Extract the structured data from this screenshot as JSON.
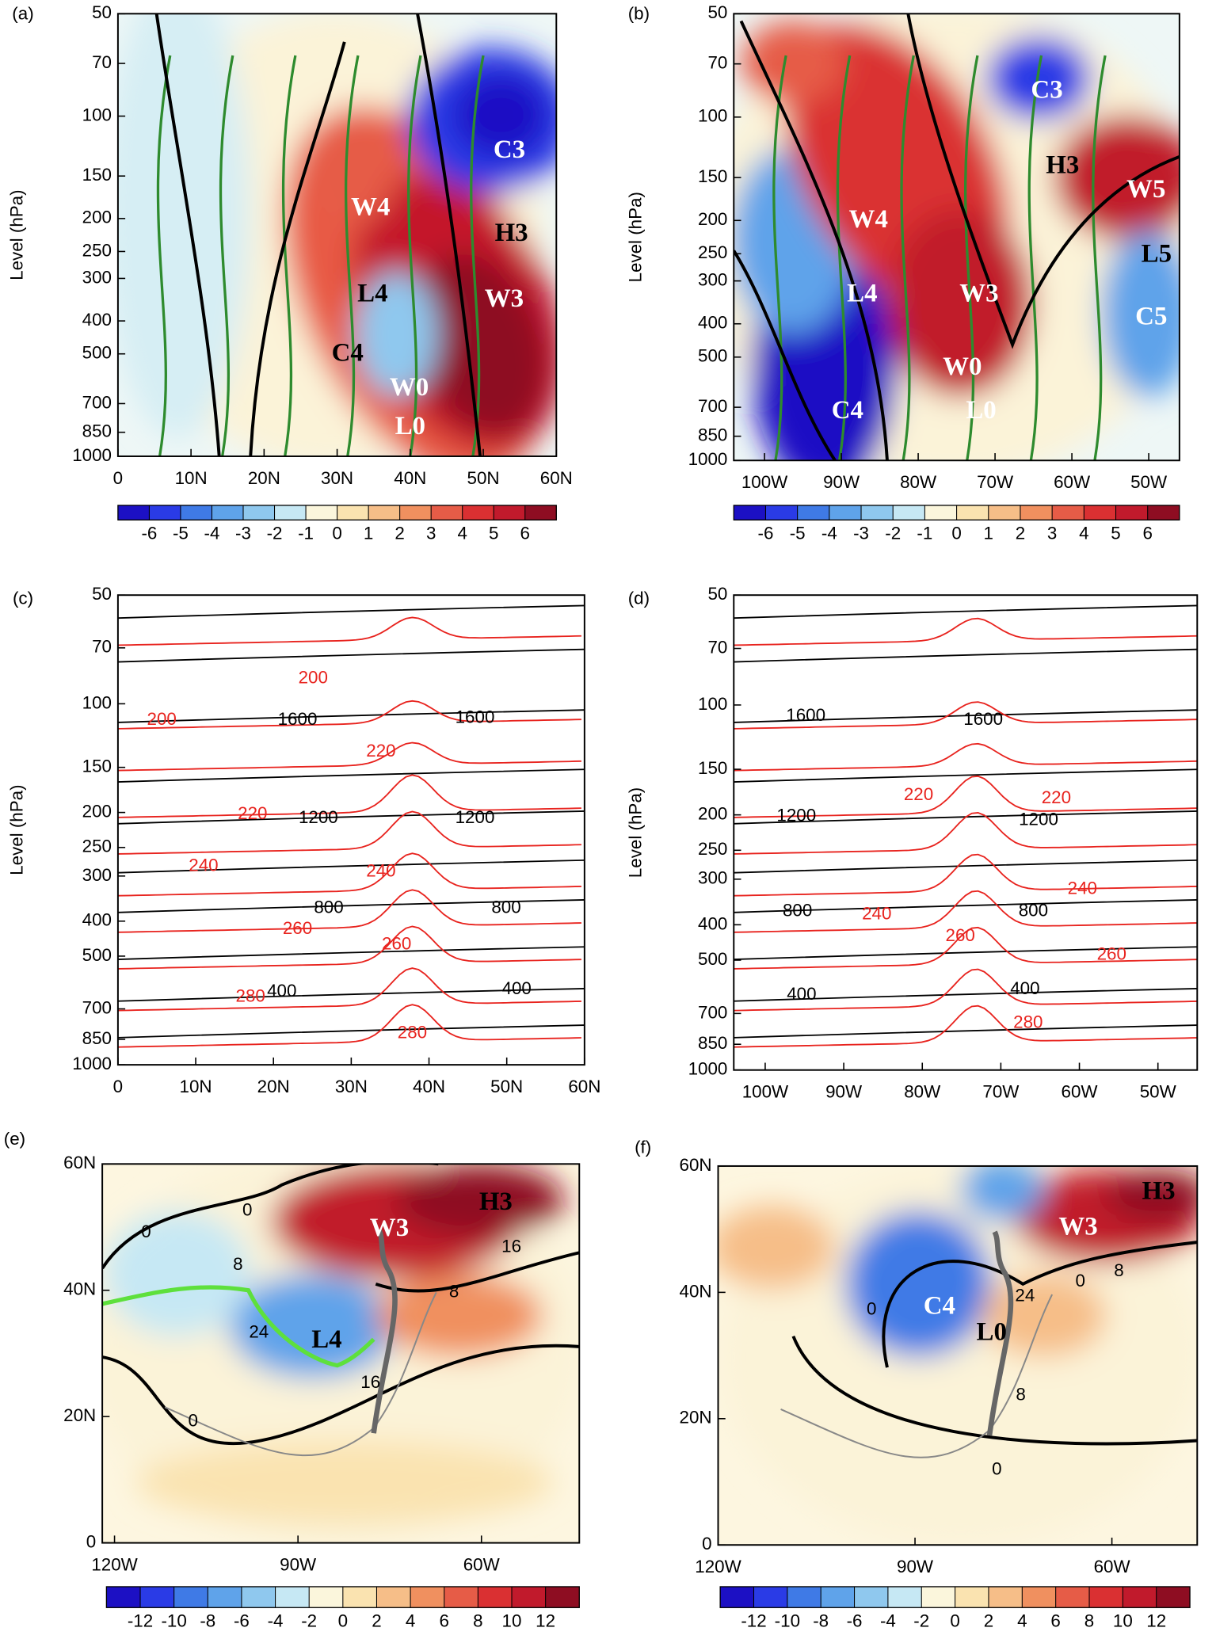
{
  "chart_data": [
    {
      "type": "contour",
      "title": "(a)",
      "ylabel": "Level (hPa)",
      "ylog": true,
      "xlim": [
        0,
        60
      ],
      "xticks": [
        0,
        {
          "value": 10,
          "label": "10N"
        },
        {
          "value": 20,
          "label": "20N"
        },
        {
          "value": 30,
          "label": "30N"
        },
        {
          "value": 40,
          "label": "40N"
        },
        {
          "value": 50,
          "label": "50N"
        },
        {
          "value": 60,
          "label": "60N"
        }
      ],
      "ylim": [
        1000,
        50
      ],
      "yticks": [
        50,
        70,
        100,
        150,
        200,
        250,
        300,
        400,
        500,
        700,
        850,
        1000
      ],
      "colorbar": {
        "ticks": [
          -6,
          -5,
          -4,
          -3,
          -2,
          -1,
          0,
          1,
          2,
          3,
          4,
          5,
          6
        ],
        "colors": [
          "#1c10c4",
          "#2a3be6",
          "#3f7ae6",
          "#5fa3ea",
          "#8fc8ee",
          "#c6e8f4",
          "#fbf6dc",
          "#fae3b0",
          "#f6be88",
          "#f0905f",
          "#e65c47",
          "#da3032",
          "#c11a2c",
          "#8e0d22"
        ]
      },
      "annotations": [
        {
          "text": "C3",
          "color": "#ffffff"
        },
        {
          "text": "W4",
          "color": "#ffffff"
        },
        {
          "text": "H3",
          "color": "#000000"
        },
        {
          "text": "W3",
          "color": "#ffffff"
        },
        {
          "text": "L4",
          "color": "#000000"
        },
        {
          "text": "C4",
          "color": "#000000"
        },
        {
          "text": "W0",
          "color": "#ffffff"
        },
        {
          "text": "L0",
          "color": "#ffffff"
        }
      ]
    },
    {
      "type": "contour",
      "title": "(b)",
      "ylabel": "Level (hPa)",
      "ylog": true,
      "xlim": [
        -104,
        -46
      ],
      "xticks": [
        {
          "value": -100,
          "label": "100W"
        },
        {
          "value": -90,
          "label": "90W"
        },
        {
          "value": -80,
          "label": "80W"
        },
        {
          "value": -70,
          "label": "70W"
        },
        {
          "value": -60,
          "label": "60W"
        },
        {
          "value": -50,
          "label": "50W"
        }
      ],
      "ylim": [
        1000,
        50
      ],
      "yticks": [
        50,
        70,
        100,
        150,
        200,
        250,
        300,
        400,
        500,
        700,
        850,
        1000
      ],
      "colorbar": {
        "ticks": [
          -6,
          -5,
          -4,
          -3,
          -2,
          -1,
          0,
          1,
          2,
          3,
          4,
          5,
          6
        ],
        "colors": [
          "#1c10c4",
          "#2a3be6",
          "#3f7ae6",
          "#5fa3ea",
          "#8fc8ee",
          "#c6e8f4",
          "#fbf6dc",
          "#fae3b0",
          "#f6be88",
          "#f0905f",
          "#e65c47",
          "#da3032",
          "#c11a2c",
          "#8e0d22"
        ]
      },
      "annotations": [
        {
          "text": "C3",
          "color": "#ffffff"
        },
        {
          "text": "H3",
          "color": "#000000"
        },
        {
          "text": "W5",
          "color": "#ffffff"
        },
        {
          "text": "W4",
          "color": "#ffffff"
        },
        {
          "text": "L5",
          "color": "#000000"
        },
        {
          "text": "L4",
          "color": "#ffffff"
        },
        {
          "text": "W3",
          "color": "#ffffff"
        },
        {
          "text": "C5",
          "color": "#ffffff"
        },
        {
          "text": "W0",
          "color": "#ffffff"
        },
        {
          "text": "C4",
          "color": "#ffffff"
        },
        {
          "text": "L0",
          "color": "#ffffff"
        }
      ]
    },
    {
      "type": "contour",
      "title": "(c)",
      "ylabel": "Level (hPa)",
      "ylog": true,
      "xlim": [
        0,
        60
      ],
      "xticks": [
        0,
        {
          "value": 10,
          "label": "10N"
        },
        {
          "value": 20,
          "label": "20N"
        },
        {
          "value": 30,
          "label": "30N"
        },
        {
          "value": 40,
          "label": "40N"
        },
        {
          "value": 50,
          "label": "50N"
        },
        {
          "value": 60,
          "label": "60N"
        }
      ],
      "ylim": [
        1000,
        50
      ],
      "yticks": [
        50,
        70,
        100,
        150,
        200,
        250,
        300,
        400,
        500,
        700,
        850,
        1000
      ],
      "annotations": [
        {
          "text": "200",
          "color": "#e8231e"
        },
        {
          "text": "1600",
          "color": "#000000"
        },
        {
          "text": "1600",
          "color": "#000000"
        },
        {
          "text": "200",
          "color": "#e8231e"
        },
        {
          "text": "220",
          "color": "#e8231e"
        },
        {
          "text": "220",
          "color": "#e8231e"
        },
        {
          "text": "1200",
          "color": "#000000"
        },
        {
          "text": "1200",
          "color": "#000000"
        },
        {
          "text": "240",
          "color": "#e8231e"
        },
        {
          "text": "240",
          "color": "#e8231e"
        },
        {
          "text": "800",
          "color": "#000000"
        },
        {
          "text": "800",
          "color": "#000000"
        },
        {
          "text": "260",
          "color": "#e8231e"
        },
        {
          "text": "260",
          "color": "#e8231e"
        },
        {
          "text": "280",
          "color": "#e8231e"
        },
        {
          "text": "400",
          "color": "#000000"
        },
        {
          "text": "400",
          "color": "#000000"
        },
        {
          "text": "280",
          "color": "#e8231e"
        }
      ]
    },
    {
      "type": "contour",
      "title": "(d)",
      "ylabel": "Level (hPa)",
      "ylog": true,
      "xlim": [
        -104,
        -45
      ],
      "xticks": [
        {
          "value": -100,
          "label": "100W"
        },
        {
          "value": -90,
          "label": "90W"
        },
        {
          "value": -80,
          "label": "80W"
        },
        {
          "value": -70,
          "label": "70W"
        },
        {
          "value": -60,
          "label": "60W"
        },
        {
          "value": -50,
          "label": "50W"
        }
      ],
      "ylim": [
        1000,
        50
      ],
      "yticks": [
        50,
        70,
        100,
        150,
        200,
        250,
        300,
        400,
        500,
        700,
        850,
        1000
      ],
      "annotations": [
        {
          "text": "1600",
          "color": "#000000"
        },
        {
          "text": "1600",
          "color": "#000000"
        },
        {
          "text": "220",
          "color": "#e8231e"
        },
        {
          "text": "220",
          "color": "#e8231e"
        },
        {
          "text": "1200",
          "color": "#000000"
        },
        {
          "text": "1200",
          "color": "#000000"
        },
        {
          "text": "240",
          "color": "#e8231e"
        },
        {
          "text": "240",
          "color": "#e8231e"
        },
        {
          "text": "800",
          "color": "#000000"
        },
        {
          "text": "800",
          "color": "#000000"
        },
        {
          "text": "260",
          "color": "#e8231e"
        },
        {
          "text": "260",
          "color": "#e8231e"
        },
        {
          "text": "400",
          "color": "#000000"
        },
        {
          "text": "400",
          "color": "#000000"
        },
        {
          "text": "280",
          "color": "#e8231e"
        }
      ]
    },
    {
      "type": "map",
      "title": "(e)",
      "xlim": [
        -122,
        -44
      ],
      "xticks": [
        {
          "value": -120,
          "label": "120W"
        },
        {
          "value": -90,
          "label": "90W"
        },
        {
          "value": -60,
          "label": "60W"
        }
      ],
      "ylim": [
        0,
        60
      ],
      "yticks": [
        0,
        {
          "value": 20,
          "label": "20N"
        },
        {
          "value": 40,
          "label": "40N"
        },
        {
          "value": 60,
          "label": "60N"
        }
      ],
      "colorbar": {
        "ticks": [
          -12,
          -10,
          -8,
          -6,
          -4,
          -2,
          0,
          2,
          4,
          6,
          8,
          10,
          12
        ],
        "colors": [
          "#1c10c4",
          "#2a3be6",
          "#3f7ae6",
          "#5fa3ea",
          "#8fc8ee",
          "#c6e8f4",
          "#fbf6dc",
          "#fae3b0",
          "#f6be88",
          "#f0905f",
          "#e65c47",
          "#da3032",
          "#c11a2c",
          "#8e0d22"
        ]
      },
      "annotations": [
        {
          "text": "W3",
          "color": "#ffffff"
        },
        {
          "text": "H3",
          "color": "#000000"
        },
        {
          "text": "L4",
          "color": "#000000"
        },
        {
          "text": "0",
          "color": "#000000"
        },
        {
          "text": "8",
          "color": "#000000"
        },
        {
          "text": "0",
          "color": "#000000"
        },
        {
          "text": "24",
          "color": "#000000"
        },
        {
          "text": "16",
          "color": "#000000"
        },
        {
          "text": "0",
          "color": "#000000"
        },
        {
          "text": "16",
          "color": "#000000"
        },
        {
          "text": "8",
          "color": "#000000"
        }
      ]
    },
    {
      "type": "map",
      "title": "(f)",
      "xlim": [
        -120,
        -47
      ],
      "xticks": [
        {
          "value": -120,
          "label": "120W"
        },
        {
          "value": -90,
          "label": "90W"
        },
        {
          "value": -60,
          "label": "60W"
        }
      ],
      "ylim": [
        0,
        60
      ],
      "yticks": [
        0,
        {
          "value": 20,
          "label": "20N"
        },
        {
          "value": 40,
          "label": "40N"
        },
        {
          "value": 60,
          "label": "60N"
        }
      ],
      "colorbar": {
        "ticks": [
          -12,
          -10,
          -8,
          -6,
          -4,
          -2,
          0,
          2,
          4,
          6,
          8,
          10,
          12
        ],
        "colors": [
          "#1c10c4",
          "#2a3be6",
          "#3f7ae6",
          "#5fa3ea",
          "#8fc8ee",
          "#c6e8f4",
          "#fbf6dc",
          "#fae3b0",
          "#f6be88",
          "#f0905f",
          "#e65c47",
          "#da3032",
          "#c11a2c",
          "#8e0d22"
        ]
      },
      "annotations": [
        {
          "text": "H3",
          "color": "#000000"
        },
        {
          "text": "W3",
          "color": "#ffffff"
        },
        {
          "text": "C4",
          "color": "#ffffff"
        },
        {
          "text": "L0",
          "color": "#000000"
        },
        {
          "text": "0",
          "color": "#000000"
        },
        {
          "text": "24",
          "color": "#000000"
        },
        {
          "text": "0",
          "color": "#000000"
        },
        {
          "text": "8",
          "color": "#000000"
        },
        {
          "text": "8",
          "color": "#000000"
        },
        {
          "text": "0",
          "color": "#000000"
        }
      ]
    }
  ]
}
